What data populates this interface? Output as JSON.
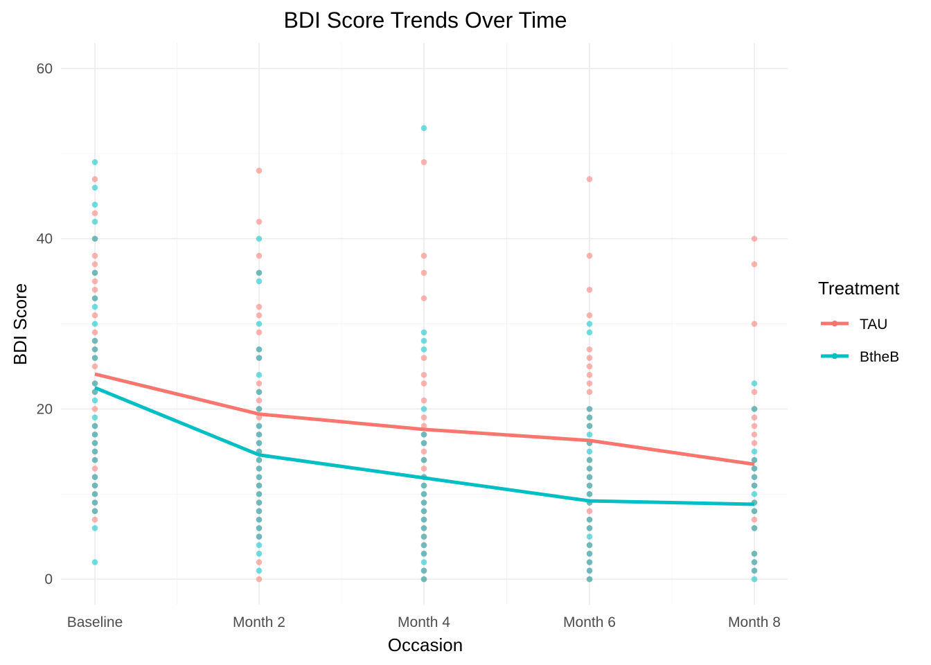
{
  "chart_data": {
    "type": "scatter",
    "title": "BDI Score Trends Over Time",
    "xlabel": "Occasion",
    "ylabel": "BDI Score",
    "categories": [
      "Baseline",
      "Month 2",
      "Month 4",
      "Month 6",
      "Month 8"
    ],
    "ylim": [
      -3,
      63
    ],
    "yticks": [
      0,
      20,
      40,
      60
    ],
    "grid": true,
    "legend": {
      "title": "Treatment",
      "placement": "right",
      "entries": [
        {
          "name": "TAU",
          "color": "#F8766D"
        },
        {
          "name": "BtheB",
          "color": "#00BFC4"
        }
      ]
    },
    "series": [
      {
        "name": "TAU",
        "color": "#F8766D",
        "mean_line": [
          24.1,
          19.4,
          17.6,
          16.3,
          13.5
        ],
        "points": [
          [
            47,
            43,
            40,
            38,
            37,
            36,
            35,
            34,
            33,
            31,
            29,
            28,
            27,
            26,
            25,
            23,
            22,
            20,
            18,
            17,
            16,
            15,
            14,
            13,
            12,
            11,
            10,
            9,
            8,
            7
          ],
          [
            48,
            42,
            38,
            36,
            32,
            31,
            29,
            27,
            26,
            23,
            22,
            21,
            20,
            19,
            18,
            17,
            16,
            15,
            14,
            13,
            12,
            11,
            10,
            9,
            8,
            7,
            6,
            5,
            2,
            0
          ],
          [
            49,
            38,
            36,
            33,
            26,
            24,
            23,
            21,
            19,
            18,
            17,
            16,
            15,
            14,
            13,
            12,
            11,
            10,
            9,
            8,
            7,
            6,
            5,
            4,
            3,
            1,
            0
          ],
          [
            47,
            38,
            34,
            31,
            27,
            26,
            25,
            24,
            23,
            22,
            20,
            19,
            18,
            16,
            14,
            13,
            12,
            11,
            10,
            9,
            8,
            7,
            6,
            4,
            3,
            2,
            1,
            0
          ],
          [
            40,
            37,
            30,
            22,
            20,
            19,
            18,
            17,
            16,
            14,
            13,
            12,
            11,
            9,
            8,
            7,
            6,
            3,
            2,
            1
          ]
        ]
      },
      {
        "name": "BtheB",
        "color": "#00BFC4",
        "mean_line": [
          22.5,
          14.6,
          11.9,
          9.2,
          8.8
        ],
        "points": [
          [
            49,
            46,
            44,
            42,
            40,
            36,
            33,
            32,
            30,
            28,
            27,
            26,
            23,
            22,
            21,
            19,
            18,
            17,
            16,
            15,
            14,
            12,
            11,
            10,
            9,
            8,
            6,
            2
          ],
          [
            40,
            36,
            35,
            30,
            27,
            26,
            24,
            22,
            20,
            18,
            17,
            16,
            15,
            14,
            13,
            12,
            11,
            10,
            9,
            8,
            7,
            6,
            5,
            4,
            3,
            1
          ],
          [
            53,
            29,
            28,
            27,
            20,
            17,
            16,
            14,
            12,
            11,
            10,
            9,
            8,
            7,
            6,
            5,
            4,
            3,
            2,
            1,
            0
          ],
          [
            30,
            29,
            20,
            19,
            18,
            17,
            16,
            15,
            14,
            13,
            12,
            11,
            10,
            9,
            7,
            6,
            5,
            4,
            3,
            2,
            1,
            0
          ],
          [
            23,
            20,
            15,
            14,
            13,
            12,
            11,
            10,
            9,
            8,
            6,
            3,
            2,
            1,
            0
          ]
        ]
      }
    ]
  }
}
